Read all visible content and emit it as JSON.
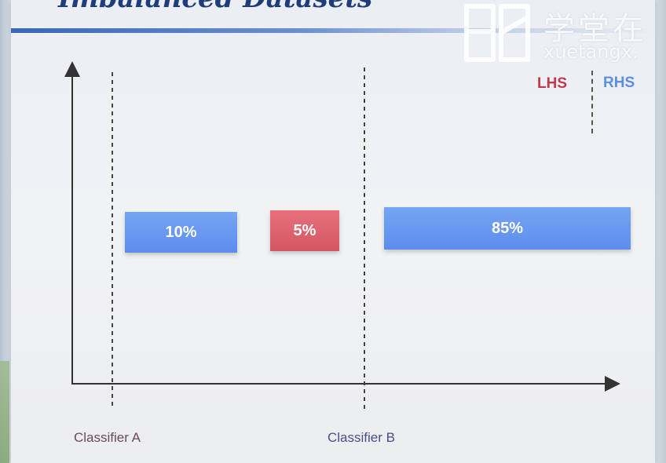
{
  "slide": {
    "title": "Imbalanced Datasets"
  },
  "watermark": {
    "chinese": "学堂在",
    "english": "xuetangx."
  },
  "legend": {
    "lhs_label": "LHS",
    "rhs_label": "RHS",
    "lhs_color": "#c0394f",
    "rhs_color": "#5a8ee8"
  },
  "segments": [
    {
      "label": "10%",
      "color": "#6a9bf0"
    },
    {
      "label": "5%",
      "color": "#dd6472"
    },
    {
      "label": "85%",
      "color": "#6a9bf0"
    }
  ],
  "classifiers": {
    "a_label": "Classifier A",
    "b_label": "Classifier B"
  }
}
